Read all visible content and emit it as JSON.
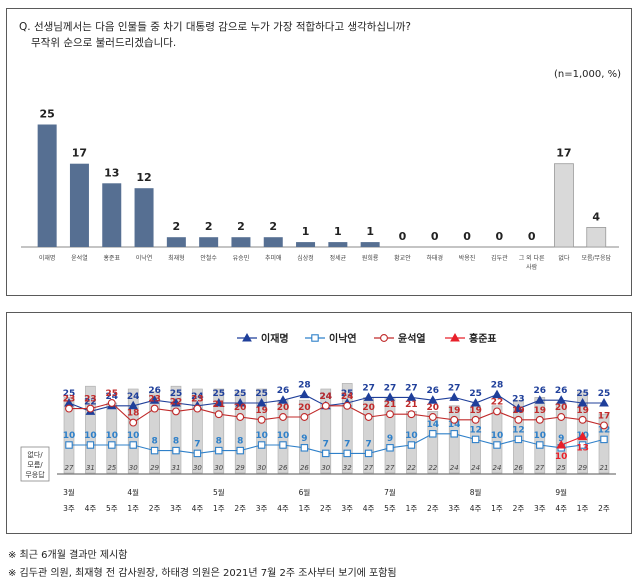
{
  "question": {
    "line1": "Q. 선생님께서는 다음 인물들 중 차기 대통령 감으로 누가 가장 적합하다고 생각하십니까?",
    "line2": "무작위 순으로 불러드리겠습니다."
  },
  "sample_note": "(n=1,000, %)",
  "footnotes": [
    "※ 최근 6개월 결과만 제시함",
    "※ 김두관 의원, 최재형 전 감사원장, 하태경 의원은 2021년 7월 2주 조사부터 보기에 포함됨"
  ],
  "colors": {
    "bar_main": "#566f92",
    "bar_other": "#d9d9d9",
    "lee_jm": "#1f3f9a",
    "lee_ny": "#2f80c9",
    "yoon": "#c02a2a",
    "hong": "#e8202a",
    "undecided_bar": "#d4d4d4"
  },
  "chart_data": [
    {
      "type": "bar",
      "categories": [
        "이재명",
        "윤석열",
        "홍준표",
        "이낙연",
        "최재형",
        "안철수",
        "유승민",
        "추미애",
        "심상정",
        "정세균",
        "원희룡",
        "황교안",
        "하태경",
        "박용진",
        "김두관",
        "그 외 다른 사람",
        "없다",
        "모름/무응답"
      ],
      "values": [
        25,
        17,
        13,
        12,
        2,
        2,
        2,
        2,
        1,
        1,
        1,
        0,
        0,
        0,
        0,
        0,
        17,
        4
      ],
      "ylim": [
        0,
        30
      ],
      "grid": false
    },
    {
      "type": "line",
      "x_months": [
        {
          "label": "3월",
          "start": 0
        },
        {
          "label": "4월",
          "start": 3
        },
        {
          "label": "5월",
          "start": 7
        },
        {
          "label": "6월",
          "start": 11
        },
        {
          "label": "7월",
          "start": 15
        },
        {
          "label": "8월",
          "start": 19
        },
        {
          "label": "9월",
          "start": 23
        }
      ],
      "x_weeks": [
        "3주",
        "4주",
        "5주",
        "1주",
        "2주",
        "3주",
        "4주",
        "1주",
        "2주",
        "3주",
        "4주",
        "1주",
        "2주",
        "3주",
        "4주",
        "5주",
        "1주",
        "2주",
        "3주",
        "4주",
        "1주",
        "2주",
        "3주",
        "4주",
        "1주",
        "2주"
      ],
      "series": [
        {
          "name": "이재명",
          "marker": "triangle",
          "values": [
            25,
            22,
            24,
            24,
            26,
            25,
            24,
            25,
            25,
            25,
            26,
            28,
            24,
            25,
            27,
            27,
            27,
            26,
            27,
            25,
            28,
            23,
            26,
            26,
            25,
            25
          ]
        },
        {
          "name": "이낙연",
          "marker": "square",
          "values": [
            10,
            10,
            10,
            10,
            8,
            8,
            7,
            8,
            8,
            10,
            10,
            9,
            7,
            7,
            7,
            9,
            10,
            14,
            14,
            12,
            10,
            12,
            10,
            9,
            10,
            12
          ]
        },
        {
          "name": "윤석열",
          "marker": "circle",
          "values": [
            23,
            23,
            25,
            18,
            23,
            22,
            23,
            21,
            20,
            19,
            20,
            20,
            24,
            24,
            20,
            21,
            21,
            20,
            19,
            19,
            22,
            19,
            19,
            20,
            19,
            17
          ]
        },
        {
          "name": "홍준표",
          "marker": "triangle",
          "start": 23,
          "values": [
            10,
            13
          ]
        }
      ],
      "undecided_label": "없다/ 모름/ 무응답",
      "undecided_values": [
        27,
        31,
        25,
        30,
        29,
        31,
        30,
        30,
        29,
        30,
        26,
        26,
        30,
        32,
        27,
        27,
        22,
        22,
        24,
        24,
        24,
        26,
        27,
        25,
        29,
        21
      ],
      "ylim": [
        0,
        32
      ]
    }
  ]
}
